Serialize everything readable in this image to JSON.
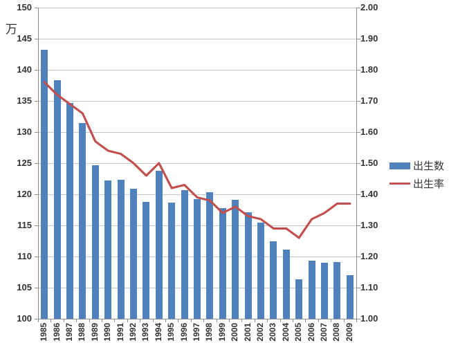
{
  "chart_data": {
    "type": "combo",
    "categories": [
      "1985",
      "1986",
      "1987",
      "1988",
      "1989",
      "1990",
      "1991",
      "1992",
      "1993",
      "1994",
      "1995",
      "1996",
      "1997",
      "1998",
      "1999",
      "2000",
      "2001",
      "2002",
      "2003",
      "2004",
      "2005",
      "2006",
      "2007",
      "2008",
      "2009"
    ],
    "series": [
      {
        "name": "出生数",
        "type": "bar",
        "axis": "left",
        "color": "#4F81BD",
        "values": [
          143.2,
          138.3,
          134.7,
          131.4,
          124.7,
          122.2,
          122.3,
          120.9,
          118.8,
          123.8,
          118.7,
          120.7,
          119.2,
          120.3,
          117.8,
          119.1,
          117.1,
          115.4,
          112.4,
          111.1,
          106.3,
          109.3,
          109.0,
          109.1,
          107.0
        ]
      },
      {
        "name": "出生率",
        "type": "line",
        "axis": "right",
        "color": "#C0504D",
        "values": [
          1.76,
          1.72,
          1.69,
          1.66,
          1.57,
          1.54,
          1.53,
          1.5,
          1.46,
          1.5,
          1.42,
          1.43,
          1.39,
          1.38,
          1.34,
          1.36,
          1.33,
          1.32,
          1.29,
          1.29,
          1.26,
          1.32,
          1.34,
          1.37,
          1.37
        ]
      }
    ],
    "left_axis": {
      "unit": "万",
      "min": 100,
      "max": 150,
      "step": 5,
      "tick_labels": [
        "150",
        "145",
        "140",
        "135",
        "130",
        "125",
        "120",
        "115",
        "110",
        "105",
        "100"
      ]
    },
    "right_axis": {
      "min": 1.0,
      "max": 2.0,
      "step": 0.1,
      "tick_labels": [
        "2.00",
        "1.90",
        "1.80",
        "1.70",
        "1.60",
        "1.50",
        "1.40",
        "1.30",
        "1.20",
        "1.10",
        "1.00"
      ]
    },
    "grid": true,
    "legend_position": "right-middle",
    "colors": {
      "grid": "#C6C6C6",
      "axis": "#8C8C8C",
      "text": "#333333",
      "background": "#FFFFFF"
    }
  }
}
